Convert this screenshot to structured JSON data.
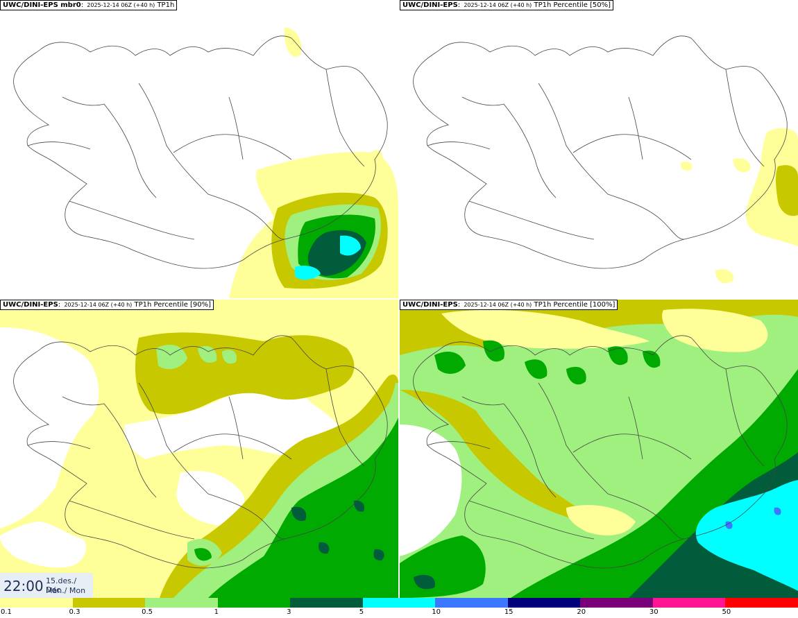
{
  "panels": [
    {
      "source": "UWC/DINI-EPS mbr0",
      "meta": "2025-12-14 06Z (+40 h)",
      "variable": "TP1h"
    },
    {
      "source": "UWC/DINI-EPS",
      "meta": "2025-12-14 06Z (+40 h)",
      "variable": "TP1h Percentile [50%]"
    },
    {
      "source": "UWC/DINI-EPS",
      "meta": "2025-12-14 06Z (+40 h)",
      "variable": "TP1h Percentile [90%]"
    },
    {
      "source": "UWC/DINI-EPS",
      "meta": "2025-12-14 06Z (+40 h)",
      "variable": "TP1h Percentile [100%]"
    }
  ],
  "valid_time": {
    "time": "22:00",
    "date_line1": "15.des./ Dec",
    "date_line2": "Mán./ Mon"
  },
  "legend": {
    "labels": [
      "0.1",
      "0.3",
      "0.5",
      "1",
      "3",
      "5",
      "10",
      "15",
      "20",
      "30",
      "50"
    ],
    "colors": [
      "#ffff99",
      "#c8c800",
      "#a0f080",
      "#00aa00",
      "#005c3a",
      "#00ffff",
      "#3c78ff",
      "#00007a",
      "#780078",
      "#ff1493",
      "#ff0000"
    ]
  }
}
